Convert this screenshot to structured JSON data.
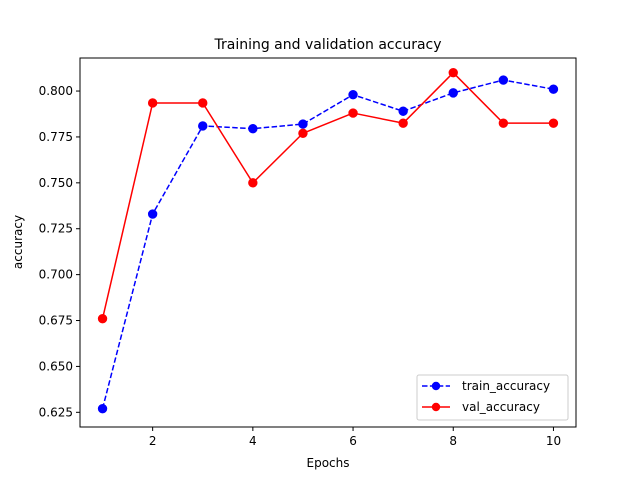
{
  "chart_data": {
    "type": "line",
    "title": "Training and validation accuracy",
    "xlabel": "Epochs",
    "ylabel": "accuracy",
    "x": [
      1,
      2,
      3,
      4,
      5,
      6,
      7,
      8,
      9,
      10
    ],
    "xlim": [
      0.55,
      10.45
    ],
    "ylim": [
      0.617,
      0.818
    ],
    "xticks": [
      2,
      4,
      6,
      8,
      10
    ],
    "yticks": [
      "0.625",
      "0.650",
      "0.675",
      "0.700",
      "0.725",
      "0.750",
      "0.775",
      "0.800"
    ],
    "grid": false,
    "legend_position": "lower right",
    "series": [
      {
        "name": "train_accuracy",
        "color": "#0000ff",
        "line_style": "dashed",
        "marker": "circle",
        "values": [
          0.627,
          0.733,
          0.781,
          0.7795,
          0.782,
          0.798,
          0.789,
          0.799,
          0.806,
          0.801
        ]
      },
      {
        "name": "val_accuracy",
        "color": "#ff0000",
        "line_style": "solid",
        "marker": "circle",
        "values": [
          0.676,
          0.7935,
          0.7935,
          0.75,
          0.777,
          0.788,
          0.7825,
          0.81,
          0.7825,
          0.7825
        ]
      }
    ]
  }
}
